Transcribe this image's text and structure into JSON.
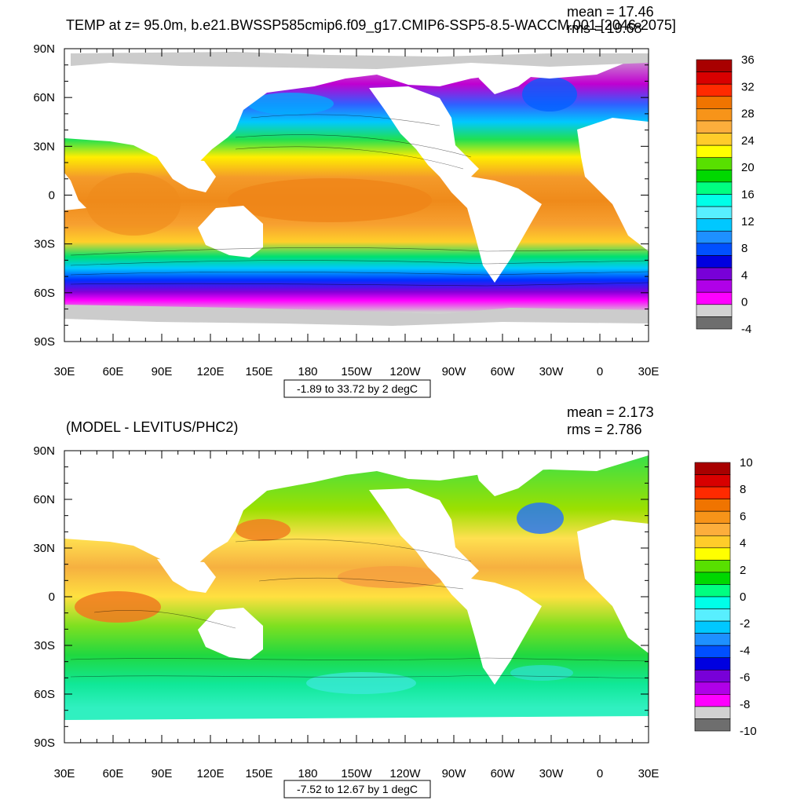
{
  "chart_data": [
    {
      "type": "heatmap",
      "title": "TEMP at z=  95.0m, b.e21.BWSSP585cmip6.f09_g17.CMIP6-SSP5-8.5-WACCM.001 [2046-2075]",
      "stats": [
        "mean = 17.46",
        "rms = 19.68"
      ],
      "range_label": "-1.89 to 33.72 by 2 degC",
      "ylim": [
        -90,
        90
      ],
      "y_ticks": [
        "90N",
        "60N",
        "30N",
        "0",
        "30S",
        "60S",
        "90S"
      ],
      "x_ticks": [
        "30E",
        "60E",
        "90E",
        "120E",
        "150E",
        "180",
        "150W",
        "120W",
        "90W",
        "60W",
        "30W",
        "0",
        "30E"
      ],
      "colorbar": {
        "labels": [
          "36",
          "32",
          "28",
          "24",
          "20",
          "16",
          "12",
          "8",
          "4",
          "0",
          "-4"
        ],
        "colors": [
          "#a80000",
          "#d80000",
          "#ff2a00",
          "#f07400",
          "#f79419",
          "#fcae3c",
          "#ffcc2a",
          "#ffff00",
          "#58e000",
          "#00d800",
          "#00ff80",
          "#00ffe8",
          "#58efff",
          "#00c8ff",
          "#1e90ff",
          "#0050ff",
          "#0000e0",
          "#7800d8",
          "#b000e8",
          "#ff00ff",
          "#d2d2d2",
          "#6e6e6e"
        ]
      }
    },
    {
      "type": "heatmap",
      "title": "(MODEL - LEVITUS/PHC2)",
      "stats": [
        "mean = 2.173",
        "rms = 2.786"
      ],
      "range_label": "-7.52 to 12.67 by 1 degC",
      "ylim": [
        -90,
        90
      ],
      "y_ticks": [
        "90N",
        "60N",
        "30N",
        "0",
        "30S",
        "60S",
        "90S"
      ],
      "x_ticks": [
        "30E",
        "60E",
        "90E",
        "120E",
        "150E",
        "180",
        "150W",
        "120W",
        "90W",
        "60W",
        "30W",
        "0",
        "30E"
      ],
      "colorbar": {
        "labels": [
          "10",
          "8",
          "6",
          "4",
          "2",
          "0",
          "-2",
          "-4",
          "-6",
          "-8",
          "-10"
        ],
        "colors": [
          "#a80000",
          "#d80000",
          "#ff2a00",
          "#f07400",
          "#f79419",
          "#fcae3c",
          "#ffcc2a",
          "#ffff00",
          "#58e000",
          "#00d800",
          "#00ff80",
          "#00ffe8",
          "#58efff",
          "#00c8ff",
          "#1e90ff",
          "#0050ff",
          "#0000e0",
          "#7800d8",
          "#b000e8",
          "#ff00ff",
          "#d2d2d2",
          "#6e6e6e"
        ]
      }
    }
  ]
}
